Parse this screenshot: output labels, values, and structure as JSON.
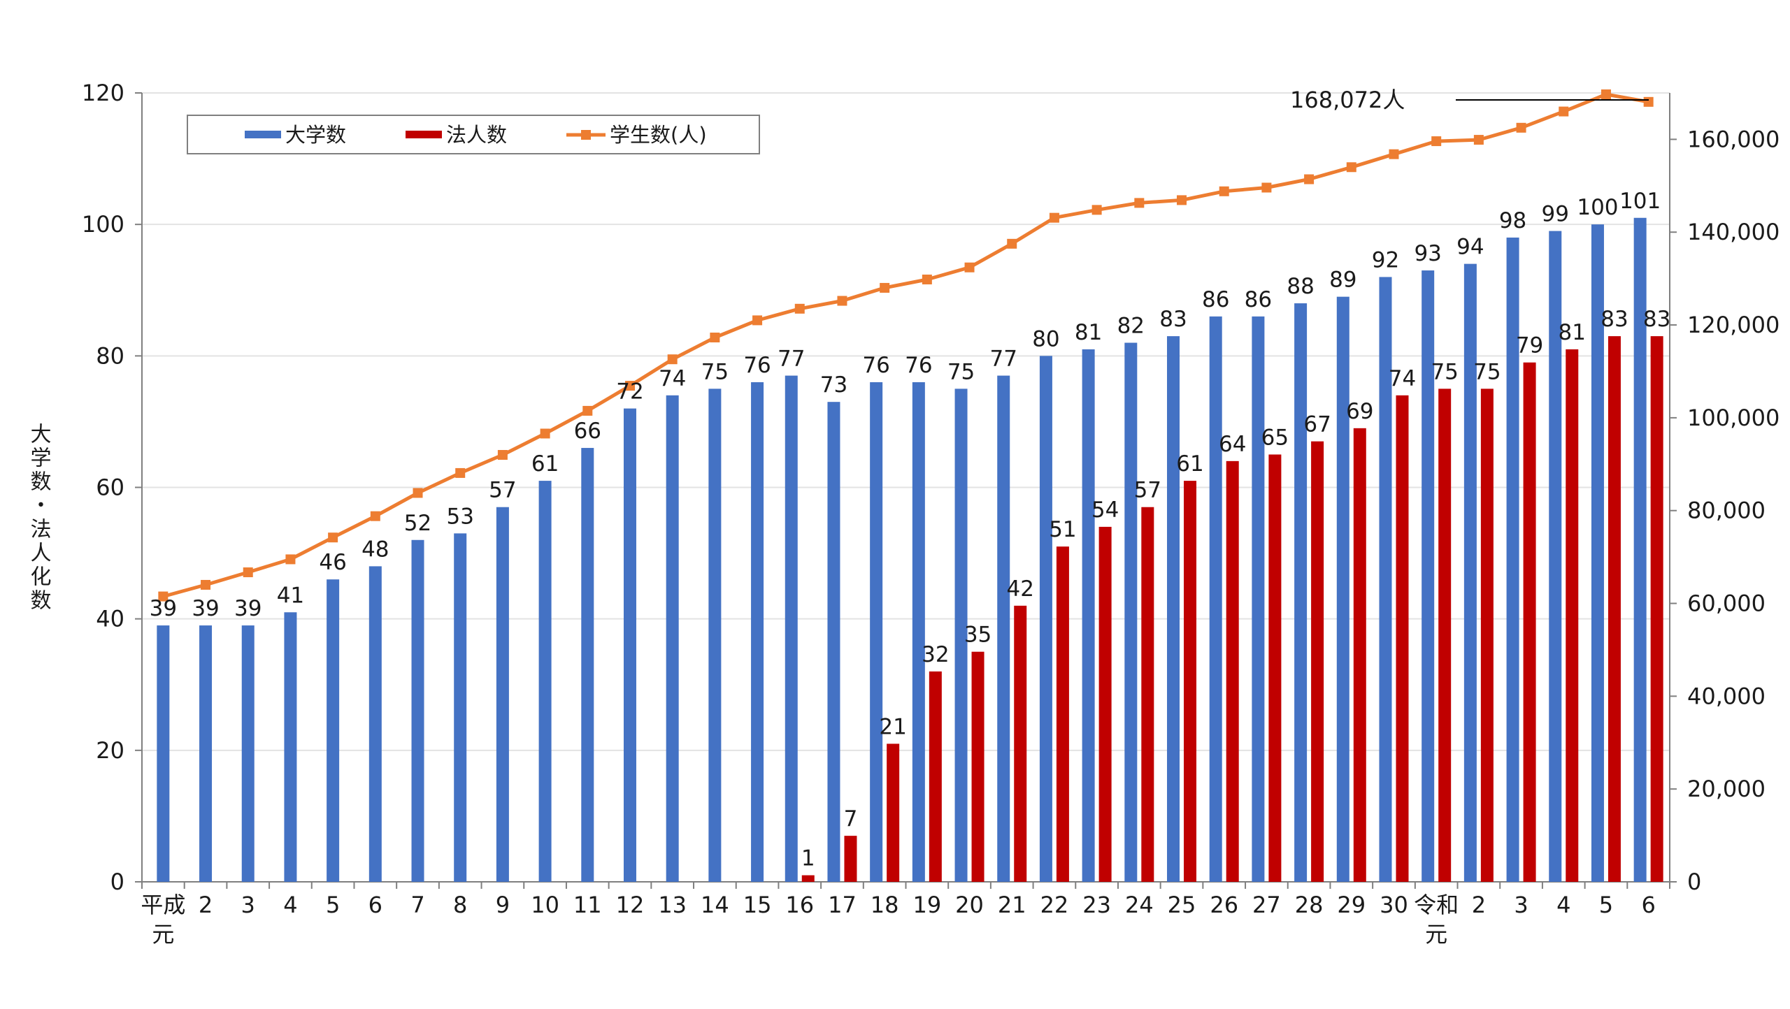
{
  "chart_data": {
    "type": "bar",
    "categories": [
      "平成\n元",
      "2",
      "3",
      "4",
      "5",
      "6",
      "7",
      "8",
      "9",
      "10",
      "11",
      "12",
      "13",
      "14",
      "15",
      "16",
      "17",
      "18",
      "19",
      "20",
      "21",
      "22",
      "23",
      "24",
      "25",
      "26",
      "27",
      "28",
      "29",
      "30",
      "令和\n元",
      "2",
      "3",
      "4",
      "5",
      "6"
    ],
    "series": [
      {
        "name": "大学数",
        "type": "bar",
        "axis": "left",
        "color": "#4472c4",
        "values": [
          39,
          39,
          39,
          41,
          46,
          48,
          52,
          53,
          57,
          61,
          66,
          72,
          74,
          75,
          76,
          77,
          73,
          76,
          76,
          75,
          77,
          80,
          81,
          82,
          83,
          86,
          86,
          88,
          89,
          92,
          93,
          94,
          98,
          99,
          100,
          101
        ],
        "labels_shown": true
      },
      {
        "name": "法人数",
        "type": "bar",
        "axis": "left",
        "color": "#c00000",
        "values": [
          null,
          null,
          null,
          null,
          null,
          null,
          null,
          null,
          null,
          null,
          null,
          null,
          null,
          null,
          null,
          1,
          7,
          21,
          32,
          35,
          42,
          51,
          54,
          57,
          61,
          64,
          65,
          67,
          69,
          74,
          75,
          75,
          79,
          81,
          83,
          83
        ],
        "labels_shown": true
      },
      {
        "name": "学生数(人)",
        "type": "line",
        "axis": "right",
        "color": "#ed7d31",
        "marker": "square",
        "values": [
          61500,
          64000,
          66700,
          69500,
          74200,
          78800,
          83800,
          88100,
          92000,
          96600,
          101500,
          106900,
          112600,
          117300,
          121000,
          123500,
          125200,
          128000,
          129800,
          132400,
          137500,
          143100,
          144800,
          146300,
          146900,
          148800,
          149600,
          151400,
          154000,
          156800,
          159600,
          159900,
          162500,
          166000,
          169700,
          168072
        ]
      }
    ],
    "left_axis": {
      "min": 0,
      "max": 120,
      "ticks": [
        "0",
        "20",
        "40",
        "60",
        "80",
        "100",
        "120"
      ],
      "label": "大学数・法人化数"
    },
    "right_axis": {
      "min": 0,
      "max": 170000,
      "ticks": [
        "0",
        "20,000",
        "40,000",
        "60,000",
        "80,000",
        "100,000",
        "120,000",
        "140,000",
        "160,000"
      ]
    },
    "annotation": "168,072人",
    "legend_position": "top-left",
    "grid": true
  }
}
